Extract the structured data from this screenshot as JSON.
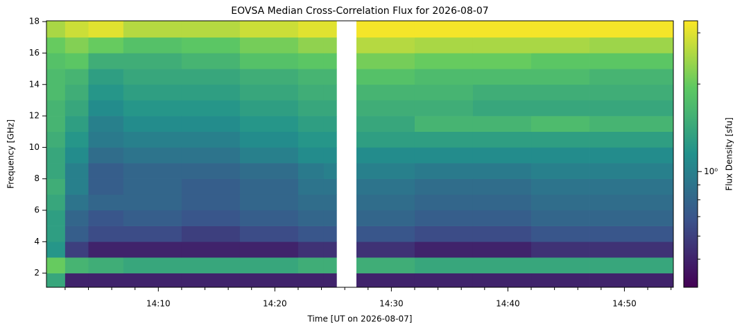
{
  "chart_data": {
    "type": "heatmap",
    "title": "EOVSA Median Cross-Correlation Flux for 2026-08-07",
    "xlabel": "Time [UT on 2026-08-07]",
    "ylabel": "Frequency [GHz]",
    "colorbar_label": "Flux Density [sfu]",
    "colorscale": "viridis",
    "color_log": true,
    "clim": [
      0.4,
      3.3
    ],
    "cticks": [
      {
        "value": 1,
        "label": "10⁰"
      }
    ],
    "cminor_ticks": [
      0.5,
      0.6,
      0.7,
      0.8,
      0.9,
      2,
      3
    ],
    "xlim": [
      840.4,
      894.2
    ],
    "xticks": [
      {
        "value": 850,
        "label": "14:10"
      },
      {
        "value": 860,
        "label": "14:20"
      },
      {
        "value": 870,
        "label": "14:30"
      },
      {
        "value": 880,
        "label": "14:40"
      },
      {
        "value": 890,
        "label": "14:50"
      }
    ],
    "xminor_ticks": [
      842,
      844,
      846,
      848,
      852,
      854,
      856,
      858,
      862,
      864,
      866,
      868,
      872,
      874,
      876,
      878,
      882,
      884,
      886,
      888,
      892,
      894
    ],
    "ylim": [
      1.1,
      18.05
    ],
    "yticks": [
      2,
      4,
      6,
      8,
      10,
      12,
      14,
      16,
      18
    ],
    "x_edges": [
      840.4,
      842,
      844,
      847,
      852,
      857,
      862,
      864.2,
      865.3,
      867.0,
      872,
      877,
      882,
      887,
      894.2
    ],
    "y_edges": [
      1,
      2,
      3,
      4,
      5,
      6,
      7,
      8,
      9,
      10,
      11,
      12,
      13,
      14,
      15,
      16,
      17,
      18.05
    ],
    "z": [
      [
        1.4,
        0.5,
        0.5,
        0.5,
        0.5,
        0.5,
        0.5,
        0.5,
        null,
        0.5,
        0.5,
        0.5,
        0.5,
        0.5
      ],
      [
        2.0,
        1.6,
        1.5,
        1.4,
        1.4,
        1.4,
        1.5,
        1.5,
        null,
        1.5,
        1.4,
        1.4,
        1.4,
        1.4
      ],
      [
        1.2,
        0.6,
        0.5,
        0.5,
        0.5,
        0.5,
        0.55,
        0.55,
        null,
        0.55,
        0.5,
        0.5,
        0.55,
        0.55
      ],
      [
        1.3,
        0.75,
        0.65,
        0.65,
        0.6,
        0.65,
        0.7,
        0.7,
        null,
        0.7,
        0.65,
        0.65,
        0.7,
        0.7
      ],
      [
        1.3,
        0.8,
        0.7,
        0.75,
        0.7,
        0.75,
        0.8,
        0.8,
        null,
        0.8,
        0.75,
        0.75,
        0.8,
        0.8
      ],
      [
        1.4,
        0.9,
        0.8,
        0.8,
        0.75,
        0.8,
        0.85,
        0.85,
        null,
        0.85,
        0.8,
        0.8,
        0.85,
        0.85
      ],
      [
        1.5,
        1.0,
        0.75,
        0.8,
        0.75,
        0.8,
        0.9,
        0.9,
        null,
        0.9,
        0.85,
        0.85,
        0.9,
        0.9
      ],
      [
        1.4,
        1.0,
        0.75,
        0.8,
        0.8,
        0.85,
        0.95,
        1.0,
        null,
        1.0,
        0.95,
        0.95,
        1.0,
        1.0
      ],
      [
        1.4,
        1.1,
        0.85,
        0.9,
        0.9,
        1.0,
        1.1,
        1.1,
        null,
        1.1,
        1.1,
        1.1,
        1.1,
        1.1
      ],
      [
        1.5,
        1.2,
        0.95,
        1.0,
        1.0,
        1.1,
        1.2,
        1.2,
        null,
        1.3,
        1.3,
        1.3,
        1.3,
        1.3
      ],
      [
        1.6,
        1.3,
        1.0,
        1.1,
        1.1,
        1.2,
        1.3,
        1.3,
        null,
        1.4,
        1.6,
        1.6,
        1.7,
        1.6
      ],
      [
        1.6,
        1.4,
        1.1,
        1.2,
        1.2,
        1.3,
        1.4,
        1.4,
        null,
        1.5,
        1.5,
        1.4,
        1.4,
        1.4
      ],
      [
        1.7,
        1.5,
        1.2,
        1.3,
        1.3,
        1.4,
        1.5,
        1.5,
        null,
        1.6,
        1.6,
        1.5,
        1.5,
        1.5
      ],
      [
        1.7,
        1.6,
        1.3,
        1.4,
        1.4,
        1.5,
        1.6,
        1.6,
        null,
        1.8,
        1.7,
        1.7,
        1.7,
        1.6
      ],
      [
        1.8,
        1.9,
        1.5,
        1.5,
        1.6,
        1.8,
        1.9,
        1.9,
        null,
        2.1,
        2.0,
        2.0,
        1.9,
        1.9
      ],
      [
        2.0,
        2.2,
        2.0,
        1.8,
        1.9,
        2.1,
        2.3,
        2.3,
        null,
        2.6,
        2.5,
        2.5,
        2.5,
        2.4
      ],
      [
        2.5,
        2.8,
        3.0,
        2.6,
        2.6,
        2.8,
        3.0,
        3.0,
        null,
        3.2,
        3.2,
        3.2,
        3.2,
        3.2
      ]
    ]
  }
}
